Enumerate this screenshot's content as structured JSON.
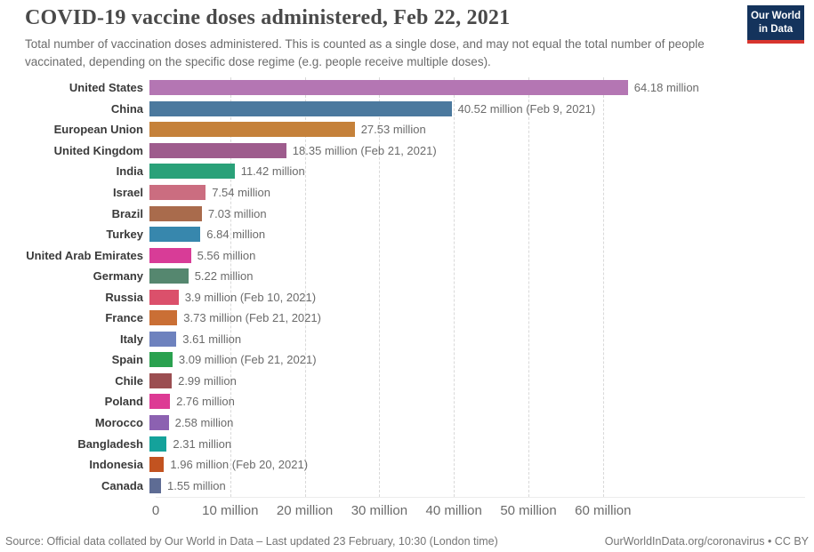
{
  "header": {
    "title": "COVID-19 vaccine doses administered, Feb 22, 2021",
    "subtitle": "Total number of vaccination doses administered. This is counted as a single dose, and may not equal the total number of people vaccinated, depending on the specific dose regime (e.g. people receive multiple doses).",
    "logo": {
      "line1": "Our World",
      "line2": "in Data",
      "bg_color": "#14335c",
      "accent_color": "#d8352e"
    }
  },
  "chart_data": {
    "type": "bar",
    "orientation": "horizontal",
    "unit": "million doses",
    "grid": "vertical-dashed",
    "legend": "none",
    "xlim": [
      0,
      87
    ],
    "categories": [
      "United States",
      "China",
      "European Union",
      "United Kingdom",
      "India",
      "Israel",
      "Brazil",
      "Turkey",
      "United Arab Emirates",
      "Germany",
      "Russia",
      "France",
      "Italy",
      "Spain",
      "Chile",
      "Poland",
      "Morocco",
      "Bangladesh",
      "Indonesia",
      "Canada"
    ],
    "values": [
      64.18,
      40.52,
      27.53,
      18.35,
      11.42,
      7.54,
      7.03,
      6.84,
      5.56,
      5.22,
      3.9,
      3.73,
      3.61,
      3.09,
      2.99,
      2.76,
      2.58,
      2.31,
      1.96,
      1.55
    ],
    "value_labels": [
      "64.18 million",
      "40.52 million (Feb 9, 2021)",
      "27.53 million",
      "18.35 million (Feb 21, 2021)",
      "11.42 million",
      "7.54 million",
      "7.03 million",
      "6.84 million",
      "5.56 million",
      "5.22 million",
      "3.9 million (Feb 10, 2021)",
      "3.73 million (Feb 21, 2021)",
      "3.61 million",
      "3.09 million (Feb 21, 2021)",
      "2.99 million",
      "2.76 million",
      "2.58 million",
      "2.31 million",
      "1.96 million (Feb 20, 2021)",
      "1.55 million"
    ],
    "colors": [
      "#b476b3",
      "#4b799e",
      "#c5813a",
      "#9e5c8d",
      "#2aa179",
      "#cb6d80",
      "#a96b4c",
      "#3787ad",
      "#d83c97",
      "#55876f",
      "#db506b",
      "#ca6f35",
      "#6e82be",
      "#2aa14f",
      "#9b4e51",
      "#dd3a94",
      "#8c61b1",
      "#14a29b",
      "#c25320",
      "#5e6c94"
    ],
    "xticks": [
      {
        "value": 0,
        "label": "0"
      },
      {
        "value": 10,
        "label": "10 million"
      },
      {
        "value": 20,
        "label": "20 million"
      },
      {
        "value": 30,
        "label": "30 million"
      },
      {
        "value": 40,
        "label": "40 million"
      },
      {
        "value": 50,
        "label": "50 million"
      },
      {
        "value": 60,
        "label": "60 million"
      }
    ]
  },
  "footer": {
    "source": "Source: Official data collated by Our World in Data – Last updated 23 February, 10:30 (London time)",
    "link": "OurWorldInData.org/coronavirus • CC BY"
  }
}
